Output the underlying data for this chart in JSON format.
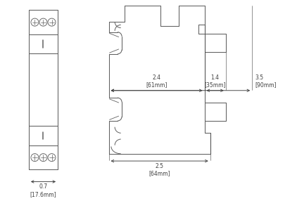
{
  "bg_color": "#ffffff",
  "line_color": "#606060",
  "dim_color": "#404040",
  "fig_width": 4.22,
  "fig_height": 2.86,
  "dpi": 100,
  "dim_061_label": "2.4\n[61mm]",
  "dim_035_label": "1.4\n[35mm]",
  "dim_090_label": "3.5\n[90mm]",
  "dim_064_label": "2.5\n[64mm]",
  "dim_176_label": "0.7\n[17.6mm]"
}
